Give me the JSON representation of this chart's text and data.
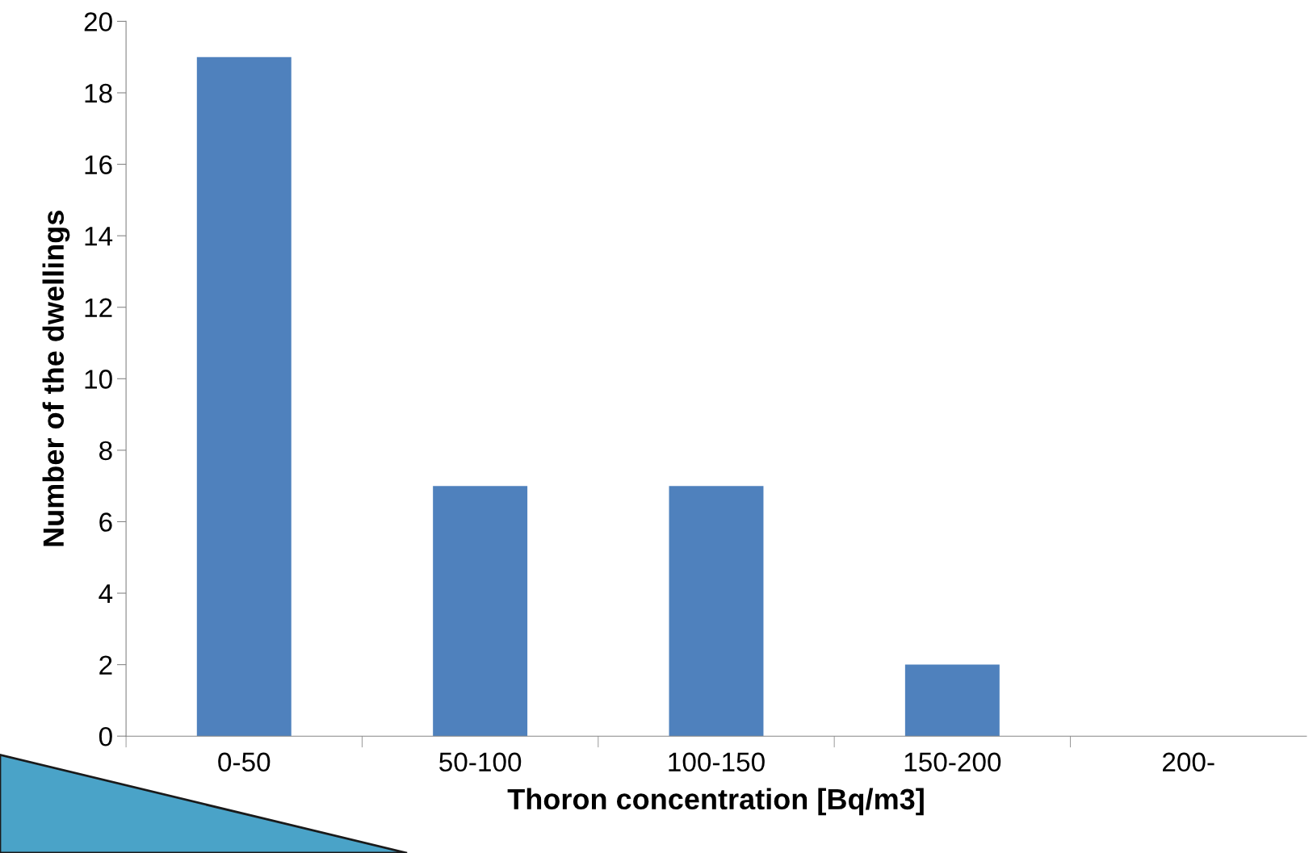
{
  "chart_data": {
    "type": "bar",
    "xlabel": "Thoron concentration [Bq/m3]",
    "ylabel": "Number of the dwellings",
    "categories": [
      "0-50",
      "50-100",
      "100-150",
      "150-200",
      "200-"
    ],
    "values": [
      19,
      7,
      7,
      2,
      0
    ],
    "color": "#4f81bd",
    "ylim": [
      0,
      20
    ],
    "yticks": [
      0,
      2,
      4,
      6,
      8,
      10,
      12,
      14,
      16,
      18,
      20
    ],
    "grid": false,
    "legend": false
  }
}
